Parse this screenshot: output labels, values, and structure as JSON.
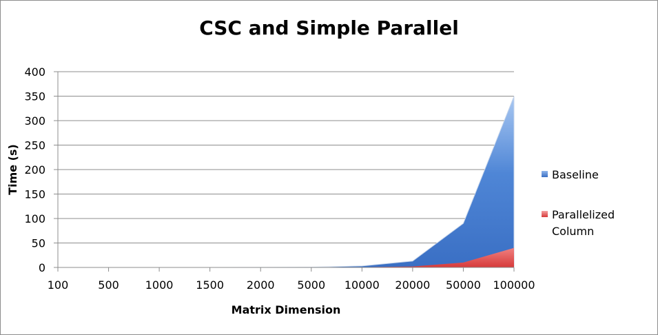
{
  "chart_data": {
    "type": "area",
    "stacked": false,
    "title": "CSC and Simple Parallel",
    "xlabel": "Matrix Dimension",
    "ylabel": "Time (s)",
    "categories": [
      "100",
      "500",
      "1000",
      "1500",
      "2000",
      "5000",
      "10000",
      "20000",
      "50000",
      "100000"
    ],
    "ylim": [
      0,
      400
    ],
    "yticks": [
      0,
      50,
      100,
      150,
      200,
      250,
      300,
      350,
      400
    ],
    "grid": true,
    "legend_position": "right",
    "series": [
      {
        "name": "Baseline",
        "color": "#4a7fd0",
        "values": [
          0,
          0,
          0,
          0,
          0.1,
          0.5,
          3,
          13,
          90,
          350
        ]
      },
      {
        "name": "Parallelized Column",
        "color": "#e04a4a",
        "values": [
          0,
          0,
          0,
          0,
          0,
          0.1,
          0.5,
          2,
          10,
          40
        ]
      }
    ]
  }
}
